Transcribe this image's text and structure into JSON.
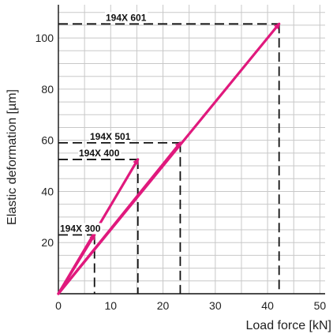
{
  "chart_data": {
    "type": "line",
    "title": "",
    "xlabel": "Load force [kN]",
    "ylabel": "Elastic deformation [µm]",
    "xlim": [
      0,
      51
    ],
    "ylim": [
      0,
      113
    ],
    "x_ticks": [
      0,
      10,
      20,
      30,
      40,
      50
    ],
    "y_ticks": [
      20,
      40,
      60,
      80,
      100
    ],
    "grid": true,
    "grid_step": 5,
    "line_color": "#e0197d",
    "series": [
      {
        "name": "194X 300",
        "x": [
          0,
          6.9
        ],
        "y": [
          0,
          23
        ]
      },
      {
        "name": "194X 400",
        "x": [
          0,
          15.2
        ],
        "y": [
          0,
          52.5
        ]
      },
      {
        "name": "194X 501",
        "x": [
          0,
          23.3
        ],
        "y": [
          0,
          59
        ]
      },
      {
        "name": "194X 601",
        "x": [
          0,
          42.2
        ],
        "y": [
          0,
          105.5
        ]
      }
    ]
  }
}
